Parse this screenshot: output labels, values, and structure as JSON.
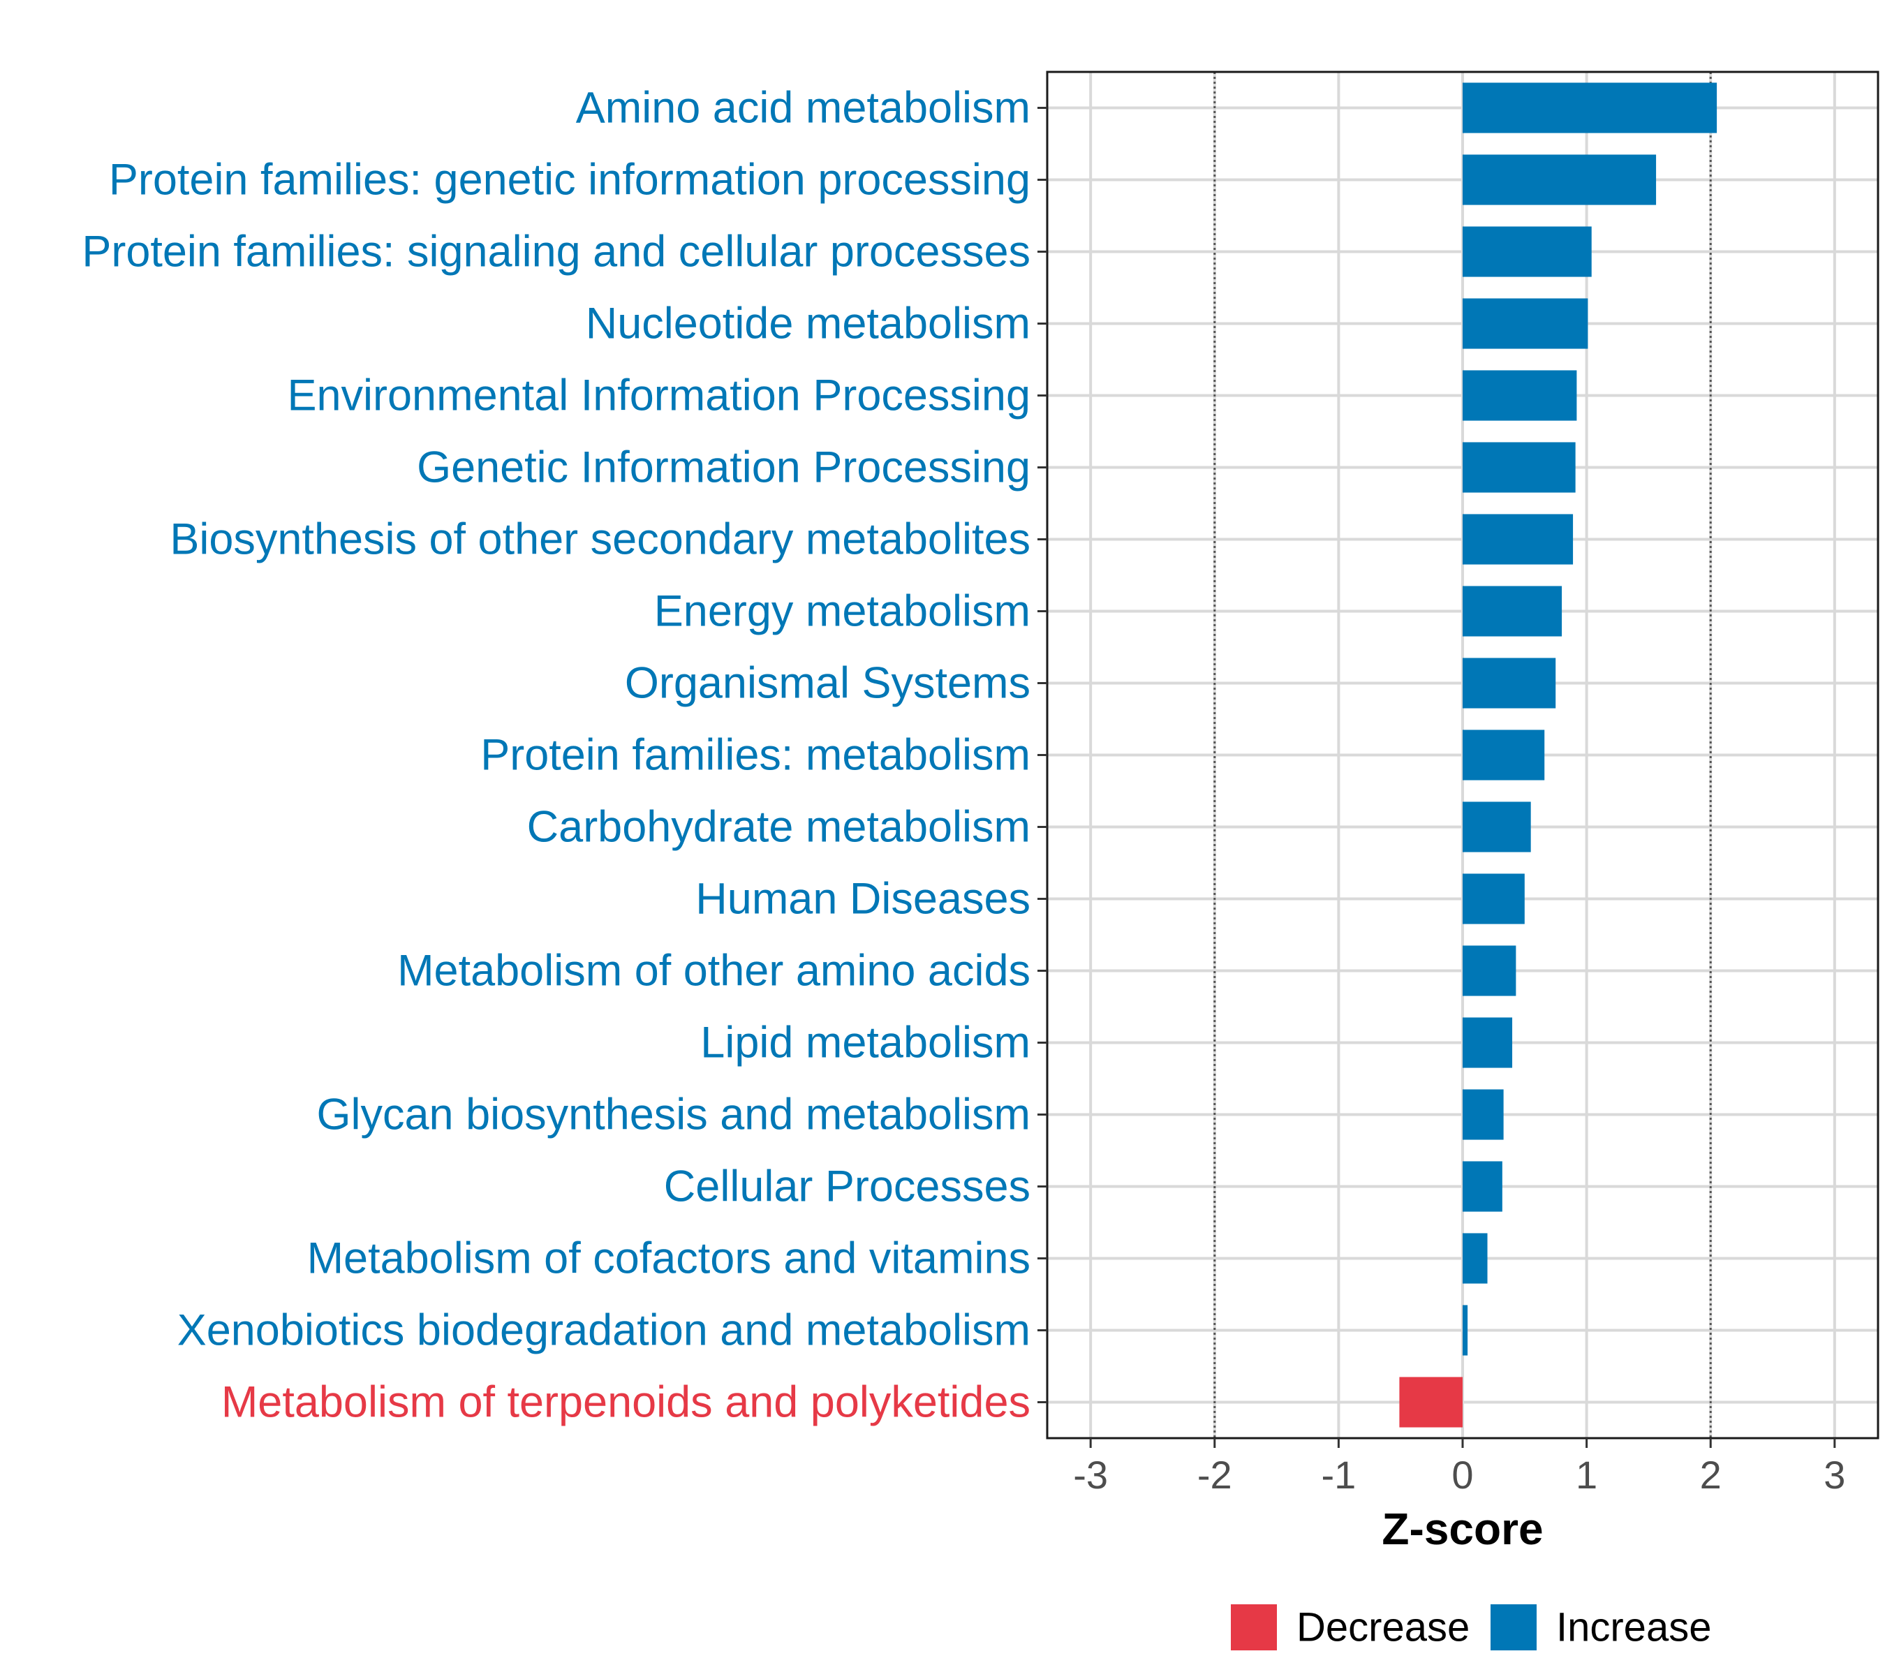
{
  "chart_data": {
    "type": "bar",
    "orientation": "horizontal",
    "title": "",
    "xlabel": "Z-score",
    "ylabel": "",
    "xlim": [
      -3.35,
      3.35
    ],
    "xticks": [
      -3,
      -2,
      -1,
      0,
      1,
      2,
      3
    ],
    "xtick_labels": [
      "-3",
      "-2",
      "-1",
      "0",
      "1",
      "2",
      "3"
    ],
    "reference_lines": [
      -2,
      2
    ],
    "grid": true,
    "legend_position": "bottom",
    "categories": [
      "Amino acid metabolism",
      "Protein families: genetic information processing",
      "Protein families: signaling and cellular processes",
      "Nucleotide metabolism",
      "Environmental Information Processing",
      "Genetic Information Processing",
      "Biosynthesis of other secondary metabolites",
      "Energy metabolism",
      "Organismal Systems",
      "Protein families: metabolism",
      "Carbohydrate metabolism",
      "Human Diseases",
      "Metabolism of other amino acids",
      "Lipid metabolism",
      "Glycan biosynthesis and metabolism",
      "Cellular Processes",
      "Metabolism of cofactors and vitamins",
      "Xenobiotics biodegradation and metabolism",
      "Metabolism of terpenoids and polyketides"
    ],
    "values": [
      2.05,
      1.56,
      1.04,
      1.01,
      0.92,
      0.91,
      0.89,
      0.8,
      0.75,
      0.66,
      0.55,
      0.5,
      0.43,
      0.4,
      0.33,
      0.32,
      0.2,
      0.04,
      -0.51
    ],
    "groups": [
      "Increase",
      "Increase",
      "Increase",
      "Increase",
      "Increase",
      "Increase",
      "Increase",
      "Increase",
      "Increase",
      "Increase",
      "Increase",
      "Increase",
      "Increase",
      "Increase",
      "Increase",
      "Increase",
      "Increase",
      "Increase",
      "Decrease"
    ],
    "legend": [
      {
        "label": "Decrease",
        "color": "#E63946"
      },
      {
        "label": "Increase",
        "color": "#0077B6"
      }
    ]
  }
}
